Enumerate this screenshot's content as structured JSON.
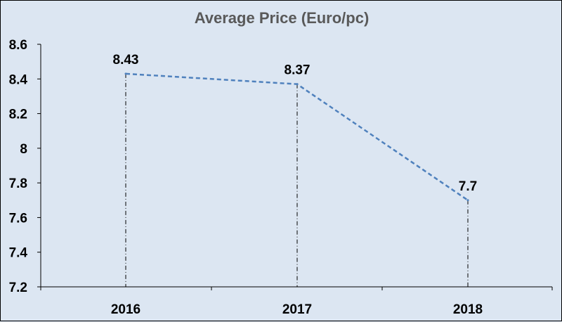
{
  "chart_data": {
    "type": "line",
    "title": "Average Price (Euro/pc)",
    "xlabel": "",
    "ylabel": "",
    "categories": [
      "2016",
      "2017",
      "2018"
    ],
    "series": [
      {
        "values": [
          8.43,
          8.37,
          7.7
        ],
        "data_labels": [
          "8.43",
          "8.37",
          "7.7"
        ],
        "color": "#4f81bd",
        "line_style": "dashed"
      }
    ],
    "ylim": [
      7.2,
      8.6
    ],
    "yticks": [
      7.2,
      7.4,
      7.6,
      7.8,
      8,
      8.2,
      8.4,
      8.6
    ],
    "ytick_labels": [
      "7.2",
      "7.4",
      "7.6",
      "7.8",
      "8",
      "8.2",
      "8.4",
      "8.6"
    ],
    "drop_lines": true,
    "grid": false,
    "legend": "none",
    "background_color": "#dce6f2"
  }
}
